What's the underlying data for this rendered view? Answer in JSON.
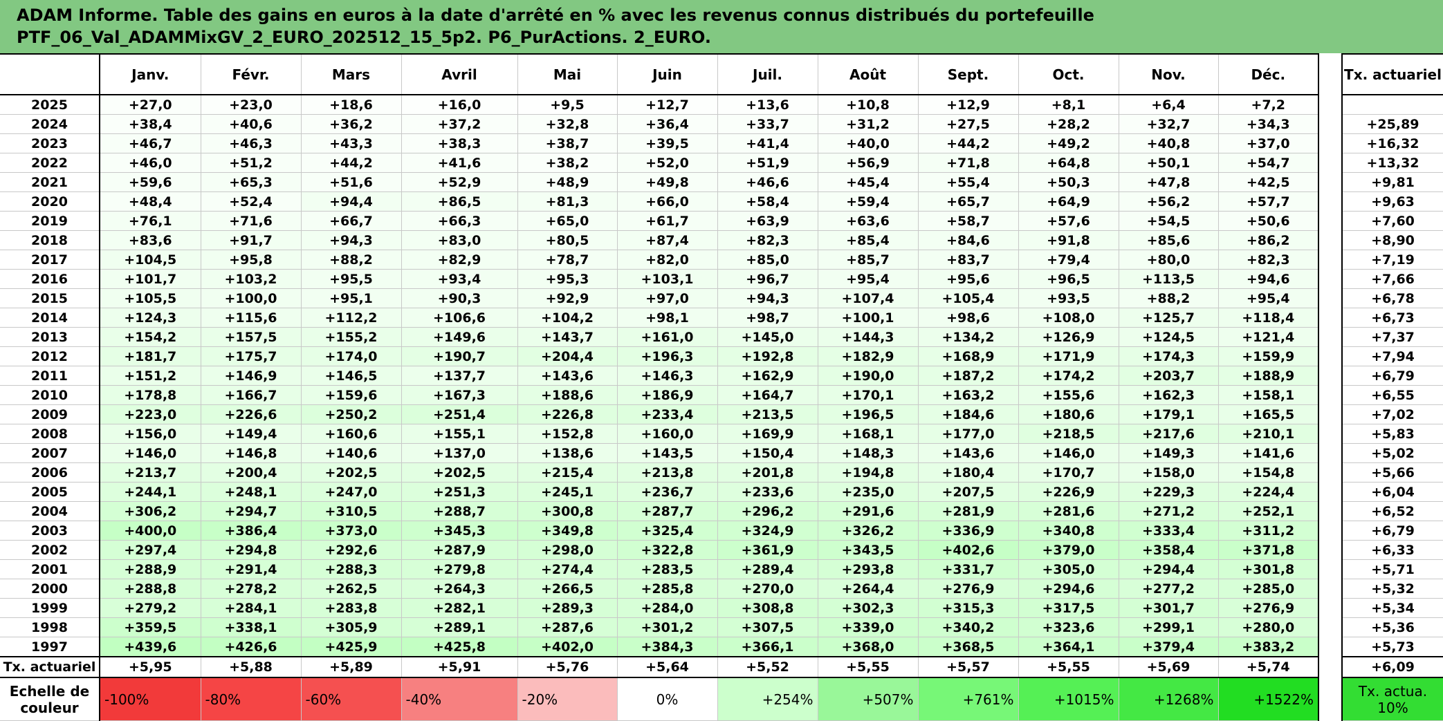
{
  "header": {
    "title_line1": "ADAM Informe. Table des gains en euros à la date d'arrêté en % avec les revenus connus distribués du portefeuille",
    "title_line2": "PTF_06_Val_ADAMMixGV_2_EURO_202512_15_5p2. P6_PurActions. 2_EURO."
  },
  "table": {
    "columns": [
      "Janv.",
      "Févr.",
      "Mars",
      "Avril",
      "Mai",
      "Juin",
      "Juil.",
      "Août",
      "Sept.",
      "Oct.",
      "Nov.",
      "Déc."
    ],
    "total_column": "Tx. actuariel",
    "rows": [
      {
        "year": "2025",
        "values": [
          "+27,0",
          "+23,0",
          "+18,6",
          "+16,0",
          "+9,5",
          "+12,7",
          "+13,6",
          "+10,8",
          "+12,9",
          "+8,1",
          "+6,4",
          "+7,2"
        ]
      },
      {
        "year": "2024",
        "values": [
          "+38,4",
          "+40,6",
          "+36,2",
          "+37,2",
          "+32,8",
          "+36,4",
          "+33,7",
          "+31,2",
          "+27,5",
          "+28,2",
          "+32,7",
          "+34,3"
        ],
        "total": "+25,89"
      },
      {
        "year": "2023",
        "values": [
          "+46,7",
          "+46,3",
          "+43,3",
          "+38,3",
          "+38,7",
          "+39,5",
          "+41,4",
          "+40,0",
          "+44,2",
          "+49,2",
          "+40,8",
          "+37,0"
        ],
        "total": "+16,32"
      },
      {
        "year": "2022",
        "values": [
          "+46,0",
          "+51,2",
          "+44,2",
          "+41,6",
          "+38,2",
          "+52,0",
          "+51,9",
          "+56,9",
          "+71,8",
          "+64,8",
          "+50,1",
          "+54,7"
        ],
        "total": "+13,32"
      },
      {
        "year": "2021",
        "values": [
          "+59,6",
          "+65,3",
          "+51,6",
          "+52,9",
          "+48,9",
          "+49,8",
          "+46,6",
          "+45,4",
          "+55,4",
          "+50,3",
          "+47,8",
          "+42,5"
        ],
        "total": "+9,81"
      },
      {
        "year": "2020",
        "values": [
          "+48,4",
          "+52,4",
          "+94,4",
          "+86,5",
          "+81,3",
          "+66,0",
          "+58,4",
          "+59,4",
          "+65,7",
          "+64,9",
          "+56,2",
          "+57,7"
        ],
        "total": "+9,63"
      },
      {
        "year": "2019",
        "values": [
          "+76,1",
          "+71,6",
          "+66,7",
          "+66,3",
          "+65,0",
          "+61,7",
          "+63,9",
          "+63,6",
          "+58,7",
          "+57,6",
          "+54,5",
          "+50,6"
        ],
        "total": "+7,60"
      },
      {
        "year": "2018",
        "values": [
          "+83,6",
          "+91,7",
          "+94,3",
          "+83,0",
          "+80,5",
          "+87,4",
          "+82,3",
          "+85,4",
          "+84,6",
          "+91,8",
          "+85,6",
          "+86,2"
        ],
        "total": "+8,90"
      },
      {
        "year": "2017",
        "values": [
          "+104,5",
          "+95,8",
          "+88,2",
          "+82,9",
          "+78,7",
          "+82,0",
          "+85,0",
          "+85,7",
          "+83,7",
          "+79,4",
          "+80,0",
          "+82,3"
        ],
        "total": "+7,19"
      },
      {
        "year": "2016",
        "values": [
          "+101,7",
          "+103,2",
          "+95,5",
          "+93,4",
          "+95,3",
          "+103,1",
          "+96,7",
          "+95,4",
          "+95,6",
          "+96,5",
          "+113,5",
          "+94,6"
        ],
        "total": "+7,66"
      },
      {
        "year": "2015",
        "values": [
          "+105,5",
          "+100,0",
          "+95,1",
          "+90,3",
          "+92,9",
          "+97,0",
          "+94,3",
          "+107,4",
          "+105,4",
          "+93,5",
          "+88,2",
          "+95,4"
        ],
        "total": "+6,78"
      },
      {
        "year": "2014",
        "values": [
          "+124,3",
          "+115,6",
          "+112,2",
          "+106,6",
          "+104,2",
          "+98,1",
          "+98,7",
          "+100,1",
          "+98,6",
          "+108,0",
          "+125,7",
          "+118,4"
        ],
        "total": "+6,73"
      },
      {
        "year": "2013",
        "values": [
          "+154,2",
          "+157,5",
          "+155,2",
          "+149,6",
          "+143,7",
          "+161,0",
          "+145,0",
          "+144,3",
          "+134,2",
          "+126,9",
          "+124,5",
          "+121,4"
        ],
        "total": "+7,37"
      },
      {
        "year": "2012",
        "values": [
          "+181,7",
          "+175,7",
          "+174,0",
          "+190,7",
          "+204,4",
          "+196,3",
          "+192,8",
          "+182,9",
          "+168,9",
          "+171,9",
          "+174,3",
          "+159,9"
        ],
        "total": "+7,94"
      },
      {
        "year": "2011",
        "values": [
          "+151,2",
          "+146,9",
          "+146,5",
          "+137,7",
          "+143,6",
          "+146,3",
          "+162,9",
          "+190,0",
          "+187,2",
          "+174,2",
          "+203,7",
          "+188,9"
        ],
        "total": "+6,79"
      },
      {
        "year": "2010",
        "values": [
          "+178,8",
          "+166,7",
          "+159,6",
          "+167,3",
          "+188,6",
          "+186,9",
          "+164,7",
          "+170,1",
          "+163,2",
          "+155,6",
          "+162,3",
          "+158,1"
        ],
        "total": "+6,55"
      },
      {
        "year": "2009",
        "values": [
          "+223,0",
          "+226,6",
          "+250,2",
          "+251,4",
          "+226,8",
          "+233,4",
          "+213,5",
          "+196,5",
          "+184,6",
          "+180,6",
          "+179,1",
          "+165,5"
        ],
        "total": "+7,02"
      },
      {
        "year": "2008",
        "values": [
          "+156,0",
          "+149,4",
          "+160,6",
          "+155,1",
          "+152,8",
          "+160,0",
          "+169,9",
          "+168,1",
          "+177,0",
          "+218,5",
          "+217,6",
          "+210,1"
        ],
        "total": "+5,83"
      },
      {
        "year": "2007",
        "values": [
          "+146,0",
          "+146,8",
          "+140,6",
          "+137,0",
          "+138,6",
          "+143,5",
          "+150,4",
          "+148,3",
          "+143,6",
          "+146,0",
          "+149,3",
          "+141,6"
        ],
        "total": "+5,02"
      },
      {
        "year": "2006",
        "values": [
          "+213,7",
          "+200,4",
          "+202,5",
          "+202,5",
          "+215,4",
          "+213,8",
          "+201,8",
          "+194,8",
          "+180,4",
          "+170,7",
          "+158,0",
          "+154,8"
        ],
        "total": "+5,66"
      },
      {
        "year": "2005",
        "values": [
          "+244,1",
          "+248,1",
          "+247,0",
          "+251,3",
          "+245,1",
          "+236,7",
          "+233,6",
          "+235,0",
          "+207,5",
          "+226,9",
          "+229,3",
          "+224,4"
        ],
        "total": "+6,04"
      },
      {
        "year": "2004",
        "values": [
          "+306,2",
          "+294,7",
          "+310,5",
          "+288,7",
          "+300,8",
          "+287,7",
          "+296,2",
          "+291,6",
          "+281,9",
          "+281,6",
          "+271,2",
          "+252,1"
        ],
        "total": "+6,52"
      },
      {
        "year": "2003",
        "values": [
          "+400,0",
          "+386,4",
          "+373,0",
          "+345,3",
          "+349,8",
          "+325,4",
          "+324,9",
          "+326,2",
          "+336,9",
          "+340,8",
          "+333,4",
          "+311,2"
        ],
        "total": "+6,79"
      },
      {
        "year": "2002",
        "values": [
          "+297,4",
          "+294,8",
          "+292,6",
          "+287,9",
          "+298,0",
          "+322,8",
          "+361,9",
          "+343,5",
          "+402,6",
          "+379,0",
          "+358,4",
          "+371,8"
        ],
        "total": "+6,33"
      },
      {
        "year": "2001",
        "values": [
          "+288,9",
          "+291,4",
          "+288,3",
          "+279,8",
          "+274,4",
          "+283,5",
          "+289,4",
          "+293,8",
          "+331,7",
          "+305,0",
          "+294,4",
          "+301,8"
        ],
        "total": "+5,71"
      },
      {
        "year": "2000",
        "values": [
          "+288,8",
          "+278,2",
          "+262,5",
          "+264,3",
          "+266,5",
          "+285,8",
          "+270,0",
          "+264,4",
          "+276,9",
          "+294,6",
          "+277,2",
          "+285,0"
        ],
        "total": "+5,32"
      },
      {
        "year": "1999",
        "values": [
          "+279,2",
          "+284,1",
          "+283,8",
          "+282,1",
          "+289,3",
          "+284,0",
          "+308,8",
          "+302,3",
          "+315,3",
          "+317,5",
          "+301,7",
          "+276,9"
        ],
        "total": "+5,34"
      },
      {
        "year": "1998",
        "values": [
          "+359,5",
          "+338,1",
          "+305,9",
          "+289,1",
          "+287,6",
          "+301,2",
          "+307,5",
          "+339,0",
          "+340,2",
          "+323,6",
          "+299,1",
          "+280,0"
        ],
        "total": "+5,36"
      },
      {
        "year": "1997",
        "values": [
          "+439,6",
          "+426,6",
          "+425,9",
          "+425,8",
          "+402,0",
          "+384,3",
          "+366,1",
          "+368,0",
          "+368,5",
          "+364,1",
          "+379,4",
          "+383,2"
        ],
        "total": "+5,73"
      }
    ],
    "footer": {
      "label": "Tx. actuariel",
      "values": [
        "+5,95",
        "+5,88",
        "+5,89",
        "+5,91",
        "+5,76",
        "+5,64",
        "+5,52",
        "+5,55",
        "+5,57",
        "+5,55",
        "+5,69",
        "+5,74"
      ],
      "total": "+6,09"
    },
    "scale": {
      "label": "Echelle de couleur",
      "items": [
        "-100%",
        "-80%",
        "-60%",
        "-40%",
        "-20%",
        "0%",
        "+254%",
        "+507%",
        "+761%",
        "+1015%",
        "+1268%",
        "+1522%"
      ],
      "total": "Tx. actua. 10%"
    }
  }
}
